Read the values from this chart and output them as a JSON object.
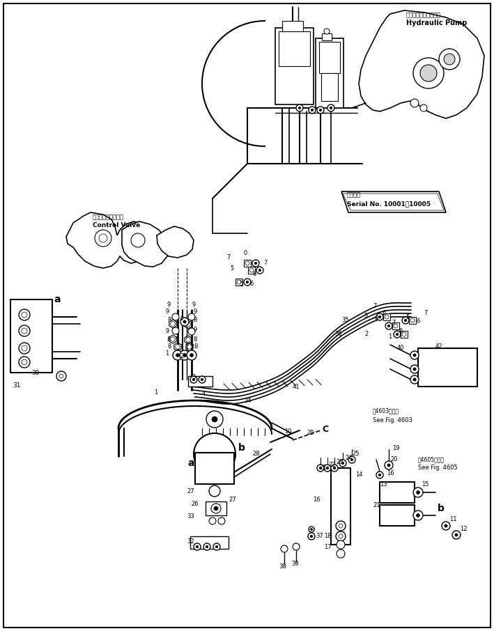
{
  "bg_color": "#ffffff",
  "line_color": "#000000",
  "fig_width": 7.09,
  "fig_height": 9.06,
  "dpi": 100,
  "labels": {
    "hydraulic_pump_jp": "ハイドロリックポンプ",
    "hydraulic_pump_en": "Hydraulic Pump",
    "control_valve_jp": "コントロールバルブ",
    "control_valve_en": "Control Valve",
    "serial_no_jp": "適用号機",
    "serial_no_en": "Serial No. 10001【10005",
    "see_fig_4603_jp": "第4603図参照",
    "see_fig_4603_en": "See Fig. 4603",
    "see_fig_4605_jp": "第4605図参照",
    "see_fig_4605_en": "See Fig. 4605"
  }
}
